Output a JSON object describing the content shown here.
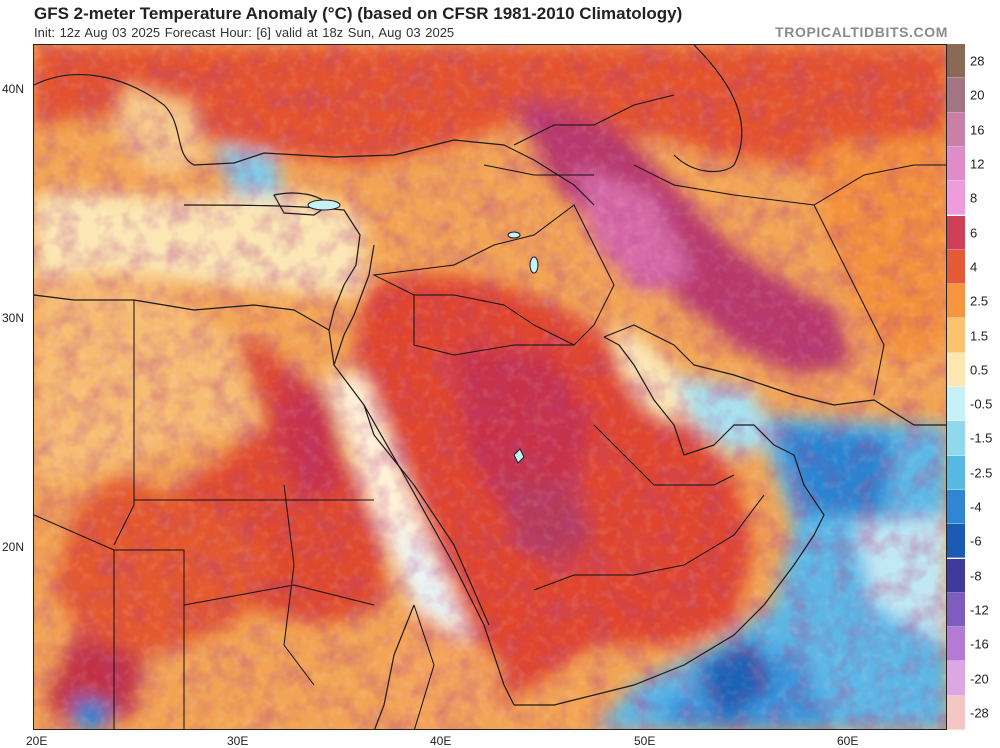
{
  "header": {
    "title": "GFS 2-meter Temperature Anomaly (°C) (based on CFSR 1981-2010 Climatology)",
    "subtitle": "Init: 12z Aug 03 2025   Forecast Hour: [6]   valid at 18z Sun, Aug 03 2025",
    "brand": "TROPICALTIDBITS.COM"
  },
  "map": {
    "region": "Middle East / Northeast Africa",
    "lat_ticks": [
      "40N",
      "30N",
      "20N"
    ],
    "lon_ticks": [
      "20E",
      "30E",
      "40E",
      "50E",
      "60E"
    ]
  },
  "colorbar": {
    "labels": [
      "28",
      "20",
      "16",
      "12",
      "8",
      "6",
      "4",
      "2.5",
      "1.5",
      "0.5",
      "-0.5",
      "-1.5",
      "-2.5",
      "-4",
      "-6",
      "-8",
      "-12",
      "-16",
      "-20",
      "-28"
    ],
    "colors": [
      "#8a6a55",
      "#a27584",
      "#c97fa6",
      "#e08cc8",
      "#ee9cdc",
      "#cf3e57",
      "#e55a36",
      "#f5963e",
      "#fbc270",
      "#fce7b0",
      "#c6f1f6",
      "#8fd8ee",
      "#57b8e4",
      "#2f87d4",
      "#1c5bb3",
      "#3f3a9c",
      "#7e5cc0",
      "#b47ad4",
      "#dca8e4",
      "#f4c7c4"
    ]
  }
}
